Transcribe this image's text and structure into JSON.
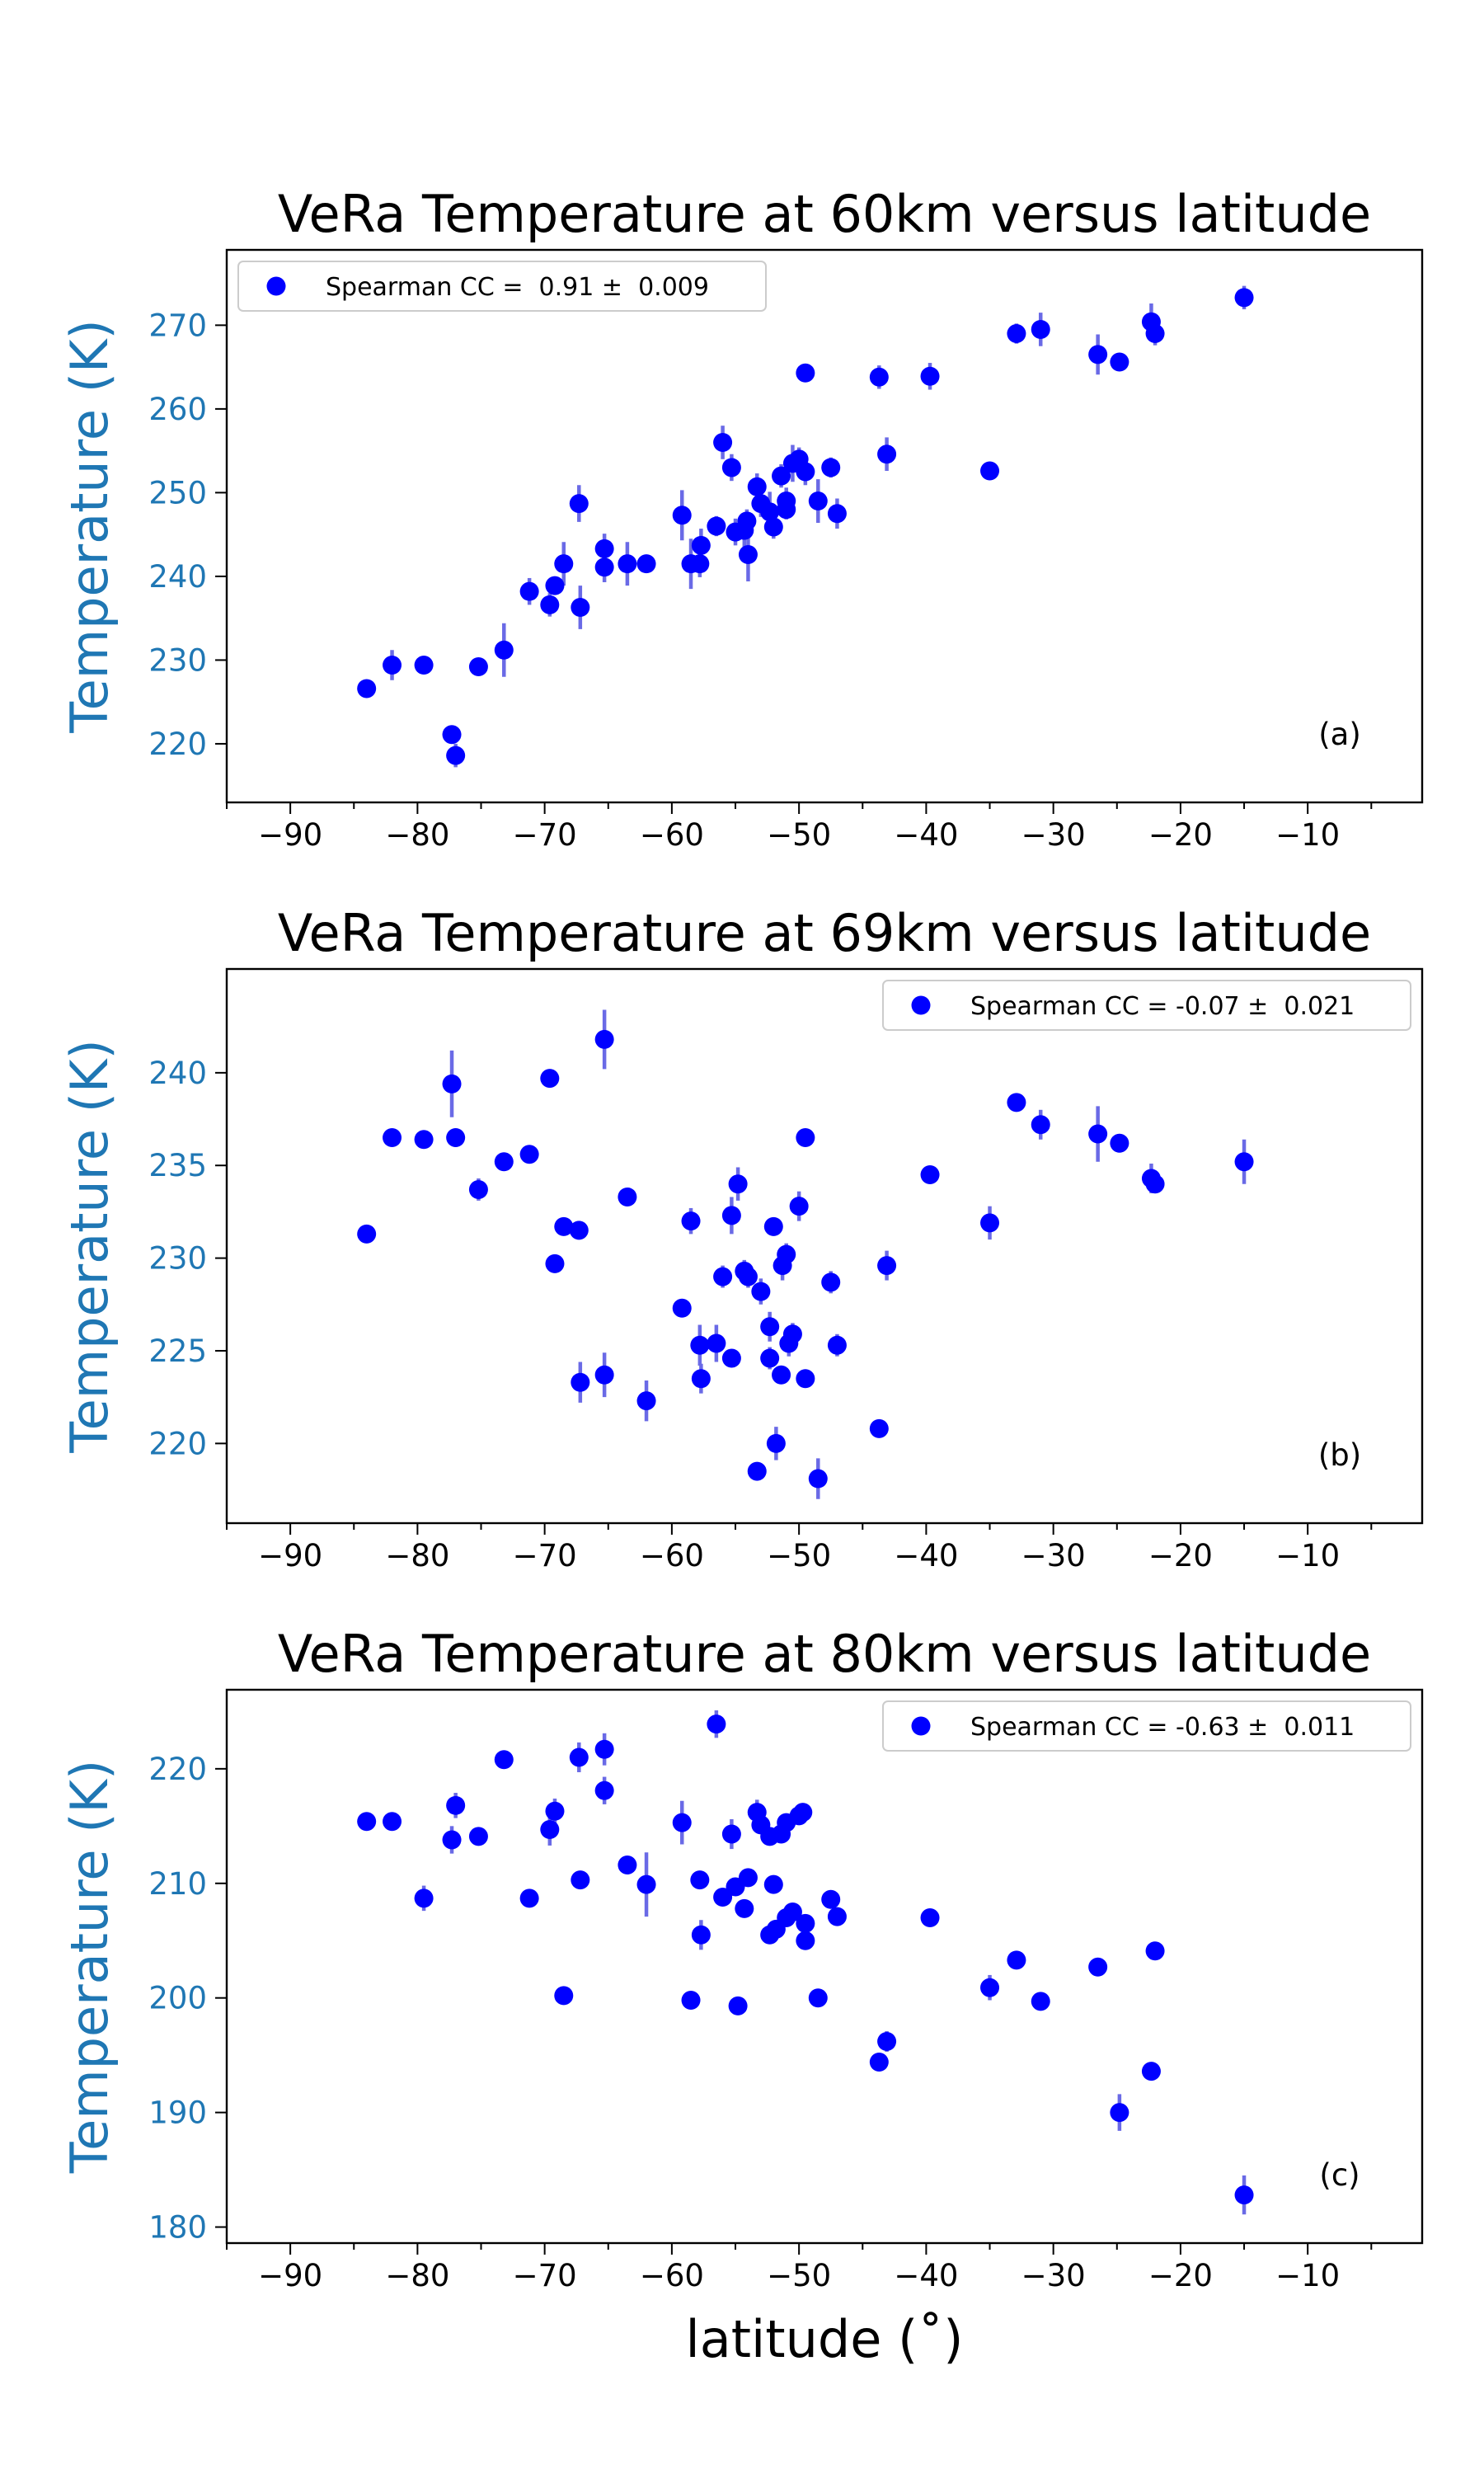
{
  "figure": {
    "xlabel": "latitude (˚)",
    "point_color": "#0000ff",
    "errorbar_color": "#6a6ae6",
    "ylabel_color": "#1f77b4"
  },
  "chart_data": [
    {
      "type": "scatter",
      "panel_label": "(a)",
      "title": "VeRa Temperature at 60km versus latitude",
      "ylabel": "Temperature (K)",
      "xlim": [
        -95,
        -1
      ],
      "ylim": [
        213,
        279
      ],
      "xticks": [
        -90,
        -80,
        -70,
        -60,
        -50,
        -40,
        -30,
        -20,
        -10
      ],
      "yticks": [
        220,
        230,
        240,
        250,
        260,
        270
      ],
      "legend": {
        "label": "Spearman CC =  0.91 ±  0.009",
        "position": "upper-left"
      },
      "points": [
        [
          -84,
          226.6,
          0.5
        ],
        [
          -82,
          229.4,
          1.8
        ],
        [
          -79.5,
          229.4,
          0.6
        ],
        [
          -77.3,
          221.1,
          0.5
        ],
        [
          -77,
          218.6,
          1.4
        ],
        [
          -75.2,
          229.2,
          0.6
        ],
        [
          -73.2,
          231.2,
          3.2
        ],
        [
          -71.2,
          238.2,
          1.6
        ],
        [
          -69.6,
          236.6,
          1.4
        ],
        [
          -69.2,
          238.9,
          0.9
        ],
        [
          -68.5,
          241.5,
          2.6
        ],
        [
          -67.3,
          248.7,
          2.2
        ],
        [
          -67.2,
          236.3,
          2.6
        ],
        [
          -65.3,
          243.3,
          1.8
        ],
        [
          -65.3,
          241.1,
          1.8
        ],
        [
          -63.5,
          241.5,
          2.6
        ],
        [
          -62.0,
          241.5,
          0.6
        ],
        [
          -59.2,
          247.3,
          3.0
        ],
        [
          -58.5,
          241.5,
          3.0
        ],
        [
          -57.8,
          241.5,
          1.6
        ],
        [
          -57.7,
          243.7,
          2.0
        ],
        [
          -56.5,
          246.0,
          1.2
        ],
        [
          -56.0,
          256.0,
          2.0
        ],
        [
          -55.3,
          253.0,
          1.6
        ],
        [
          -55.0,
          245.3,
          1.6
        ],
        [
          -54.3,
          245.5,
          2.0
        ],
        [
          -54.1,
          246.6,
          1.4
        ],
        [
          -54.0,
          242.6,
          3.2
        ],
        [
          -53.3,
          250.7,
          1.6
        ],
        [
          -53.0,
          248.7,
          1.6
        ],
        [
          -52.3,
          247.7,
          2.4
        ],
        [
          -52.0,
          245.9,
          1.4
        ],
        [
          -51.4,
          252.0,
          1.4
        ],
        [
          -51.0,
          249.0,
          1.6
        ],
        [
          -51.0,
          248.0,
          1.2
        ],
        [
          -50.5,
          253.5,
          2.2
        ],
        [
          -50.0,
          254.0,
          1.4
        ],
        [
          -49.5,
          252.5,
          1.6
        ],
        [
          -49.5,
          264.3,
          0.6
        ],
        [
          -48.5,
          249.0,
          2.6
        ],
        [
          -47.5,
          253.0,
          1.2
        ],
        [
          -47.0,
          247.5,
          1.8
        ],
        [
          -43.7,
          263.8,
          1.4
        ],
        [
          -43.1,
          254.6,
          2.0
        ],
        [
          -39.7,
          263.9,
          1.6
        ],
        [
          -35.0,
          252.6,
          0.6
        ],
        [
          -32.9,
          269.0,
          1.2
        ],
        [
          -31.0,
          269.5,
          2.0
        ],
        [
          -26.5,
          266.5,
          2.4
        ],
        [
          -24.8,
          265.6,
          0.8
        ],
        [
          -22.3,
          270.4,
          2.2
        ],
        [
          -22.0,
          269.0,
          1.4
        ],
        [
          -15.0,
          273.3,
          1.4
        ]
      ]
    },
    {
      "type": "scatter",
      "panel_label": "(b)",
      "title": "VeRa Temperature at 69km versus latitude",
      "ylabel": "Temperature (K)",
      "xlim": [
        -95,
        -1
      ],
      "ylim": [
        215.7,
        245.6
      ],
      "xticks": [
        -90,
        -80,
        -70,
        -60,
        -50,
        -40,
        -30,
        -20,
        -10
      ],
      "yticks": [
        220,
        225,
        230,
        235,
        240
      ],
      "legend": {
        "label": "Spearman CC = -0.07 ±  0.021",
        "position": "upper-right"
      },
      "points": [
        [
          -84,
          231.3,
          0.3
        ],
        [
          -82,
          236.5,
          0.4
        ],
        [
          -79.5,
          236.4,
          0.4
        ],
        [
          -77.3,
          239.4,
          1.8
        ],
        [
          -77,
          236.5,
          0.5
        ],
        [
          -75.2,
          233.7,
          0.6
        ],
        [
          -73.2,
          235.2,
          0.5
        ],
        [
          -71.2,
          235.6,
          0.4
        ],
        [
          -69.6,
          239.7,
          0.4
        ],
        [
          -69.2,
          229.7,
          0.5
        ],
        [
          -68.5,
          231.7,
          0.4
        ],
        [
          -67.3,
          231.5,
          0.5
        ],
        [
          -67.2,
          223.3,
          1.1
        ],
        [
          -65.3,
          241.8,
          1.6
        ],
        [
          -65.3,
          223.7,
          1.2
        ],
        [
          -63.5,
          233.3,
          0.4
        ],
        [
          -62.0,
          222.3,
          1.1
        ],
        [
          -59.2,
          227.3,
          0.5
        ],
        [
          -58.5,
          232.0,
          0.7
        ],
        [
          -57.8,
          225.3,
          1.1
        ],
        [
          -57.7,
          223.5,
          0.8
        ],
        [
          -56.5,
          225.4,
          1.0
        ],
        [
          -56.0,
          229.0,
          0.6
        ],
        [
          -55.3,
          224.6,
          0.4
        ],
        [
          -55.3,
          232.3,
          1.0
        ],
        [
          -54.8,
          234.0,
          0.9
        ],
        [
          -54.3,
          229.3,
          0.6
        ],
        [
          -54.0,
          229.0,
          0.6
        ],
        [
          -53.3,
          218.5,
          0.4
        ],
        [
          -53.0,
          228.2,
          0.7
        ],
        [
          -52.3,
          226.3,
          0.8
        ],
        [
          -52.3,
          224.6,
          0.6
        ],
        [
          -52.0,
          231.7,
          0.5
        ],
        [
          -51.8,
          220.0,
          0.9
        ],
        [
          -51.4,
          223.7,
          0.5
        ],
        [
          -51.3,
          229.6,
          0.8
        ],
        [
          -51.0,
          230.2,
          0.6
        ],
        [
          -50.8,
          225.4,
          0.7
        ],
        [
          -50.5,
          225.9,
          0.6
        ],
        [
          -50.0,
          232.8,
          0.8
        ],
        [
          -49.5,
          236.5,
          0.4
        ],
        [
          -49.5,
          223.5,
          0.5
        ],
        [
          -48.5,
          218.1,
          1.1
        ],
        [
          -47.5,
          228.7,
          0.6
        ],
        [
          -47.0,
          225.3,
          0.6
        ],
        [
          -43.7,
          220.8,
          0.4
        ],
        [
          -43.1,
          229.6,
          0.8
        ],
        [
          -39.7,
          234.5,
          0.4
        ],
        [
          -35.0,
          231.9,
          0.9
        ],
        [
          -32.9,
          238.4,
          0.4
        ],
        [
          -31.0,
          237.2,
          0.8
        ],
        [
          -26.5,
          236.7,
          1.5
        ],
        [
          -24.8,
          236.2,
          0.4
        ],
        [
          -22.3,
          234.3,
          0.8
        ],
        [
          -22.0,
          234.0,
          0.5
        ],
        [
          -15.0,
          235.2,
          1.2
        ]
      ]
    },
    {
      "type": "scatter",
      "panel_label": "(c)",
      "title": "VeRa Temperature at 80km versus latitude",
      "ylabel": "Temperature (K)",
      "xlim": [
        -95,
        -1
      ],
      "ylim": [
        178.6,
        226.9
      ],
      "xticks": [
        -90,
        -80,
        -70,
        -60,
        -50,
        -40,
        -30,
        -20,
        -10
      ],
      "yticks": [
        180,
        190,
        200,
        210,
        220
      ],
      "legend": {
        "label": "Spearman CC = -0.63 ±  0.011",
        "position": "upper-right"
      },
      "points": [
        [
          -84,
          215.4,
          0.4
        ],
        [
          -82,
          215.4,
          0.4
        ],
        [
          -79.5,
          208.7,
          1.1
        ],
        [
          -77.3,
          213.8,
          1.2
        ],
        [
          -77,
          216.8,
          1.1
        ],
        [
          -75.2,
          214.1,
          0.5
        ],
        [
          -73.2,
          220.8,
          0.5
        ],
        [
          -71.2,
          208.7,
          0.4
        ],
        [
          -69.6,
          214.7,
          1.4
        ],
        [
          -69.2,
          216.3,
          1.1
        ],
        [
          -68.5,
          200.2,
          0.4
        ],
        [
          -67.3,
          221.0,
          1.3
        ],
        [
          -67.2,
          210.3,
          0.5
        ],
        [
          -65.3,
          221.7,
          1.4
        ],
        [
          -65.3,
          218.1,
          1.2
        ],
        [
          -63.5,
          211.6,
          0.5
        ],
        [
          -62.0,
          209.9,
          2.8
        ],
        [
          -59.2,
          215.3,
          1.9
        ],
        [
          -58.5,
          199.8,
          0.5
        ],
        [
          -57.8,
          210.3,
          0.4
        ],
        [
          -57.7,
          205.5,
          1.3
        ],
        [
          -56.5,
          223.9,
          1.2
        ],
        [
          -56.0,
          208.8,
          0.4
        ],
        [
          -55.3,
          214.3,
          1.3
        ],
        [
          -55.0,
          209.7,
          0.5
        ],
        [
          -54.8,
          199.3,
          0.5
        ],
        [
          -54.3,
          207.8,
          0.4
        ],
        [
          -54.0,
          210.5,
          0.5
        ],
        [
          -53.3,
          216.2,
          1.1
        ],
        [
          -53.0,
          215.1,
          0.4
        ],
        [
          -52.3,
          214.1,
          0.5
        ],
        [
          -52.3,
          205.5,
          0.6
        ],
        [
          -52.0,
          209.9,
          0.5
        ],
        [
          -51.8,
          206.0,
          0.6
        ],
        [
          -51.4,
          214.3,
          0.4
        ],
        [
          -51.0,
          215.3,
          0.6
        ],
        [
          -51.0,
          207.0,
          0.6
        ],
        [
          -50.5,
          207.5,
          0.6
        ],
        [
          -50.0,
          215.9,
          0.6
        ],
        [
          -49.7,
          216.2,
          0.4
        ],
        [
          -49.5,
          205.0,
          0.6
        ],
        [
          -49.5,
          206.5,
          0.4
        ],
        [
          -48.5,
          200.0,
          0.5
        ],
        [
          -47.5,
          208.6,
          0.6
        ],
        [
          -47.0,
          207.1,
          0.6
        ],
        [
          -43.7,
          194.4,
          0.8
        ],
        [
          -43.1,
          196.2,
          0.9
        ],
        [
          -39.7,
          207.0,
          0.4
        ],
        [
          -35.0,
          200.9,
          1.1
        ],
        [
          -32.9,
          203.3,
          0.5
        ],
        [
          -31.0,
          199.7,
          0.4
        ],
        [
          -26.5,
          202.7,
          0.5
        ],
        [
          -24.8,
          190.0,
          1.6
        ],
        [
          -22.3,
          193.6,
          0.7
        ],
        [
          -22.0,
          204.1,
          0.4
        ],
        [
          -15.0,
          182.8,
          1.7
        ]
      ]
    }
  ]
}
